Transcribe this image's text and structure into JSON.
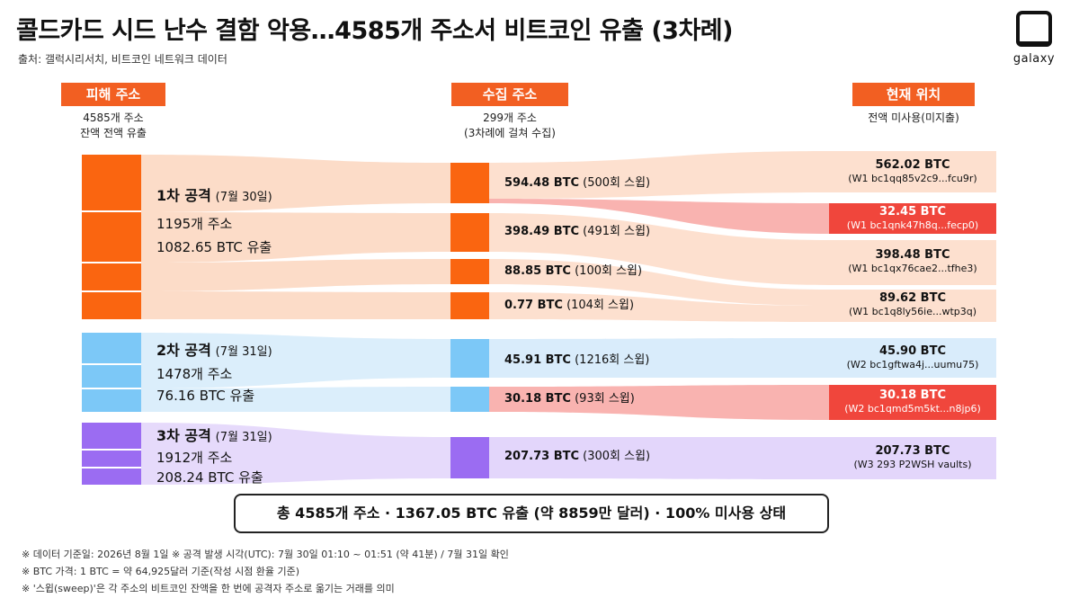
{
  "title": "콜드카드 시드 난수 결함 악용…4585개 주소서 비트코인 유출 (3차례)",
  "source": "출처: 갤럭시리서치, 비트코인 네트워크 데이터",
  "logo_text": "galaxy",
  "columns": {
    "victim": {
      "label": "피해 주소",
      "sub1": "4585개 주소",
      "sub2": "잔액 전액 유출"
    },
    "collect": {
      "label": "수집 주소",
      "sub1": "299개 주소",
      "sub2": "(3차례에 걸쳐 수집)"
    },
    "current": {
      "label": "현재 위치",
      "sub1": "전액 미사용(미지출)"
    }
  },
  "waves": [
    {
      "head": "1차 공격",
      "date": "(7월 30일)",
      "addresses": "1195개 주소",
      "leaked": "1082.65 BTC 유출",
      "color": "#fa6510",
      "flow_color": "#fcdcc8"
    },
    {
      "head": "2차 공격",
      "date": "(7월 31일)",
      "addresses": "1478개 주소",
      "leaked": "76.16 BTC 유출",
      "color": "#7cc8f7",
      "flow_color": "#dbeefb"
    },
    {
      "head": "3차 공격",
      "date": "(7월 31일)",
      "addresses": "1912개 주소",
      "leaked": "208.24 BTC 유출",
      "color": "#9b6cf2",
      "flow_color": "#e6dafb"
    }
  ],
  "collections": [
    {
      "amount": "594.48 BTC",
      "sweeps": "(500회 스윕)"
    },
    {
      "amount": "398.49 BTC",
      "sweeps": "(491회 스윕)"
    },
    {
      "amount": "88.85 BTC",
      "sweeps": "(100회 스윕)"
    },
    {
      "amount": "0.77 BTC",
      "sweeps": "(104회 스윕)"
    },
    {
      "amount": "45.91 BTC",
      "sweeps": "(1216회 스윕)"
    },
    {
      "amount": "30.18 BTC",
      "sweeps": "(93회 스윕)"
    },
    {
      "amount": "207.73 BTC",
      "sweeps": "(300회 스윕)"
    }
  ],
  "destinations": [
    {
      "amount": "562.02 BTC",
      "address": "(W1 bc1qq85v2c9...fcu9r)",
      "highlight": false
    },
    {
      "amount": "32.45 BTC",
      "address": "(W1 bc1qnk47h8q...fecp0)",
      "highlight": true
    },
    {
      "amount": "398.48 BTC",
      "address": "(W1 bc1qx76cae2...tfhe3)",
      "highlight": false
    },
    {
      "amount": "89.62 BTC",
      "address": "(W1 bc1q8ly56ie...wtp3q)",
      "highlight": false
    },
    {
      "amount": "45.90 BTC",
      "address": "(W2 bc1gftwa4j...uumu75)",
      "highlight": false
    },
    {
      "amount": "30.18 BTC",
      "address": "(W2 bc1qmd5m5kt...n8jp6)",
      "highlight": true
    },
    {
      "amount": "207.73 BTC",
      "address": "(W3 293 P2WSH vaults)",
      "highlight": false
    }
  ],
  "total": "총 4585개 주소 · 1367.05 BTC 유출 (약 8859만 달러) · 100% 미사용 상태",
  "notes": [
    "※  데이터 기준일: 2026년 8월 1일      ※  공격 발생 시각(UTC): 7월 30일 01:10 ~ 01:51 (약 41분) / 7월 31일 확인",
    "※  BTC 가격: 1 BTC = 약 64,925달러 기준(작성 시점 환율 기준)",
    "※  '스윕(sweep)'은 각 주소의 비트코인 잔액을 한 번에 공격자 주소로 옮기는 거래를 의미"
  ],
  "colors": {
    "accent": "#f25f22",
    "highlight_box": "#f0463c",
    "highlight_flow": "#f9b3b0",
    "dest_wave1": "#fde0cf",
    "dest_wave2": "#d9ecfb",
    "dest_wave3": "#e3d6fb"
  }
}
